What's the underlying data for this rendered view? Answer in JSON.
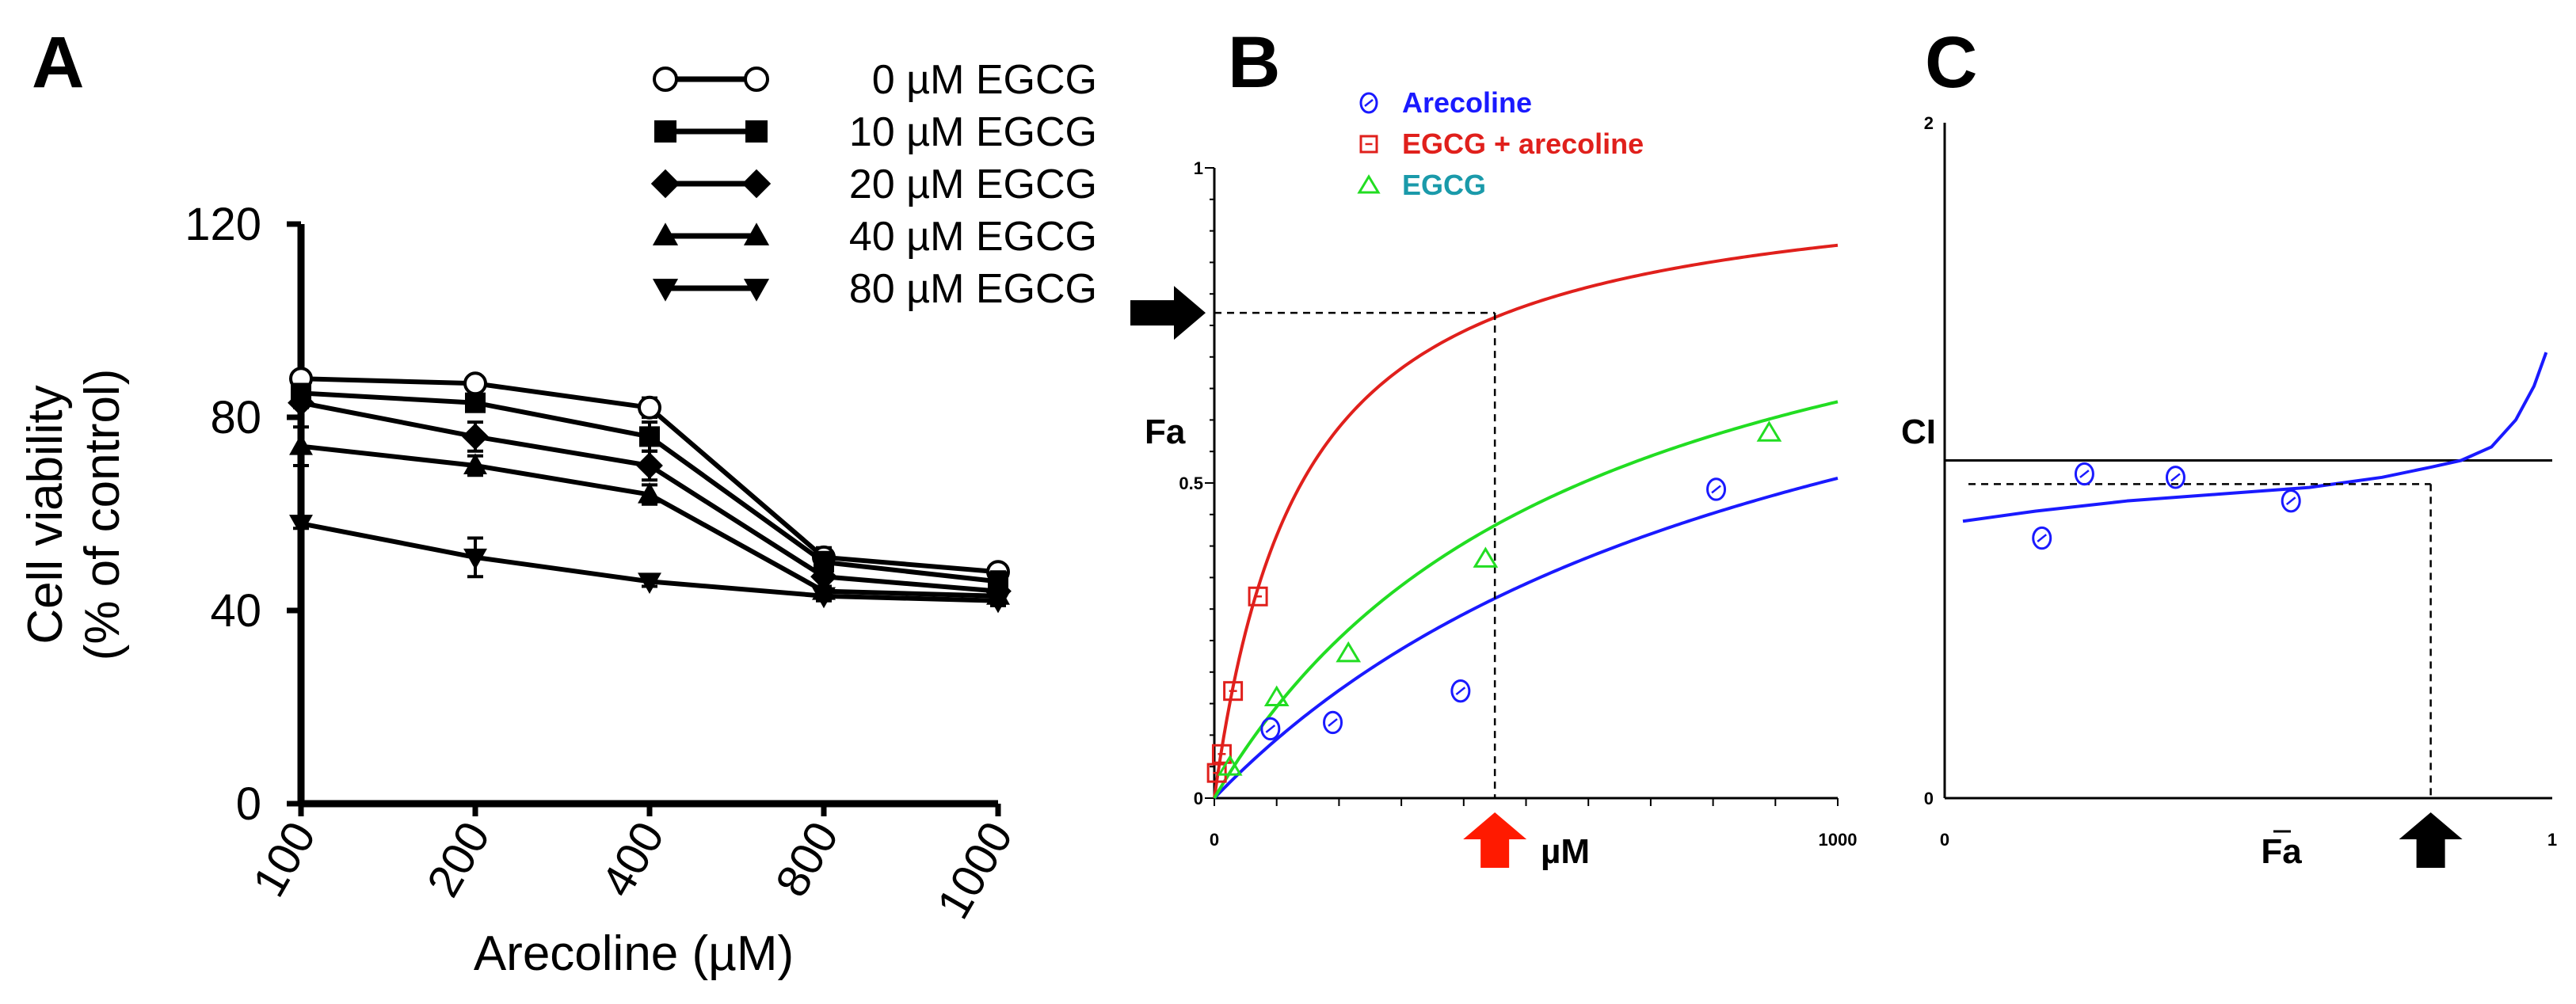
{
  "colors": {
    "black": "#000000",
    "blue": "#1a1aff",
    "red": "#e0201c",
    "green": "#22dd22",
    "teal": "#1a9aaa",
    "arrow_red": "#ff1a00"
  },
  "chart_data": [
    {
      "panel": "A",
      "type": "line",
      "title": "",
      "xlabel": "Arecoline (µM)",
      "ylabel": [
        "Cell viability",
        "(% of control)"
      ],
      "categories": [
        "100",
        "200",
        "400",
        "800",
        "1000"
      ],
      "ylim": [
        0,
        120
      ],
      "yticks": [
        "0",
        "40",
        "80",
        "120"
      ],
      "grid": false,
      "legend_position": "top-right",
      "series": [
        {
          "name": "0 µM EGCG",
          "marker": "circle-open",
          "values": [
            88,
            87,
            82,
            51,
            48
          ],
          "err": [
            1,
            1,
            2,
            2,
            1
          ]
        },
        {
          "name": "10 µM EGCG",
          "marker": "square-filled",
          "values": [
            85,
            83,
            76,
            50,
            46
          ],
          "err": [
            1,
            1,
            3,
            2,
            2
          ]
        },
        {
          "name": "20 µM EGCG",
          "marker": "diamond-filled",
          "values": [
            83,
            76,
            70,
            47,
            44
          ],
          "err": [
            1,
            3,
            3,
            2,
            1
          ]
        },
        {
          "name": "40 µM EGCG",
          "marker": "triangle-up-filled",
          "values": [
            74,
            70,
            64,
            44,
            43
          ],
          "err": [
            4,
            2,
            2,
            1,
            1
          ]
        },
        {
          "name": "80 µM EGCG",
          "marker": "triangle-down-filled",
          "values": [
            58,
            51,
            46,
            43,
            42
          ],
          "err": [
            1,
            4,
            1,
            1,
            1
          ]
        }
      ]
    },
    {
      "panel": "B",
      "type": "scatter",
      "title": "",
      "xlabel": "µM",
      "ylabel": "Fa",
      "xlim": [
        0,
        1000
      ],
      "ylim": [
        0,
        1
      ],
      "xticks": [
        "0",
        "1000"
      ],
      "yticks": [
        "0",
        "0.5",
        "1"
      ],
      "grid": false,
      "legend_position": "top-left",
      "series": [
        {
          "name": "Arecoline",
          "marker": "circle",
          "color": "#1a1aff",
          "points": [
            [
              90,
              0.11
            ],
            [
              190,
              0.12
            ],
            [
              395,
              0.17
            ],
            [
              805,
              0.49
            ]
          ],
          "curve": {
            "dm": 970,
            "m": 1.0
          }
        },
        {
          "name": "EGCG + arecoline",
          "marker": "square",
          "color": "#e0201c",
          "points": [
            [
              4,
              0.04
            ],
            [
              12,
              0.07
            ],
            [
              30,
              0.17
            ],
            [
              70,
              0.32
            ]
          ],
          "curve": {
            "dm": 140,
            "m": 1.0
          }
        },
        {
          "name": "EGCG",
          "marker": "triangle",
          "color": "#22dd22",
          "points": [
            [
              25,
              0.05
            ],
            [
              100,
              0.16
            ],
            [
              215,
              0.23
            ],
            [
              435,
              0.38
            ],
            [
              890,
              0.58
            ]
          ],
          "curve": {
            "dm": 590,
            "m": 1.0
          }
        }
      ],
      "annotations": {
        "dose_um": 450,
        "fa": 0.77,
        "left_arrow": "black",
        "bottom_arrow": "red"
      }
    },
    {
      "panel": "C",
      "type": "scatter",
      "title": "",
      "xlabel": "Fa",
      "ylabel": "CI",
      "xlim": [
        0,
        1
      ],
      "ylim": [
        0,
        2
      ],
      "xticks": [
        "0",
        "1"
      ],
      "yticks": [
        "0",
        "2"
      ],
      "grid": false,
      "reference_line": 1.0,
      "series": [
        {
          "name": "CI",
          "marker": "circle",
          "color": "#1a1aff",
          "points": [
            [
              0.16,
              0.77
            ],
            [
              0.23,
              0.96
            ],
            [
              0.38,
              0.95
            ],
            [
              0.57,
              0.88
            ]
          ]
        }
      ],
      "curve": [
        [
          0.03,
          0.82
        ],
        [
          0.15,
          0.85
        ],
        [
          0.3,
          0.88
        ],
        [
          0.45,
          0.9
        ],
        [
          0.6,
          0.92
        ],
        [
          0.72,
          0.95
        ],
        [
          0.8,
          0.98
        ],
        [
          0.85,
          1.0
        ],
        [
          0.9,
          1.04
        ],
        [
          0.94,
          1.12
        ],
        [
          0.97,
          1.22
        ],
        [
          0.99,
          1.32
        ]
      ],
      "annotations": {
        "fa": 0.8,
        "ci": 0.93,
        "bottom_arrow": "black"
      }
    }
  ]
}
